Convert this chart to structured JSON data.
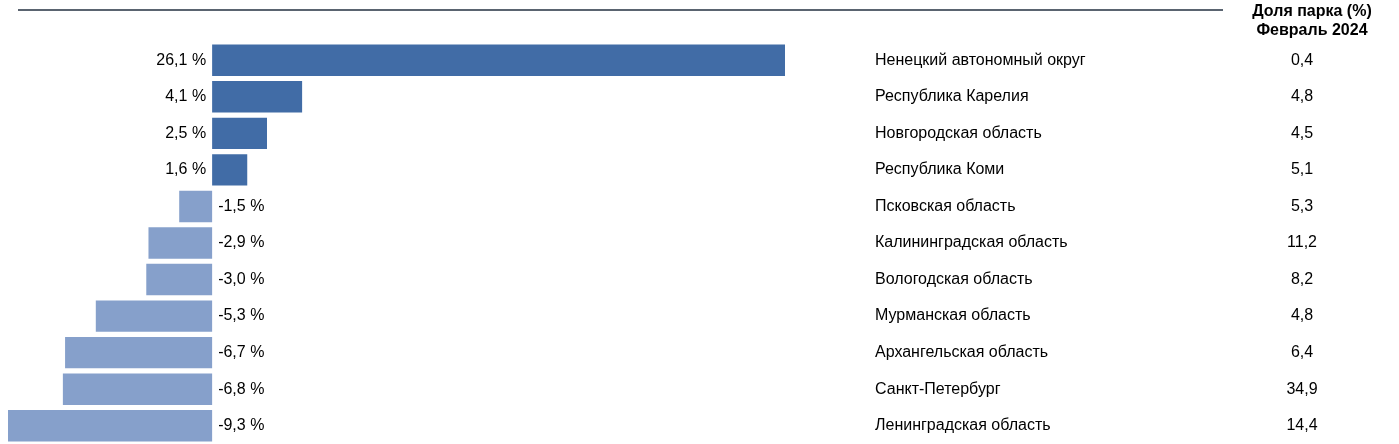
{
  "chart_data": {
    "type": "bar",
    "orientation": "horizontal",
    "categories": [
      "Ненецкий автономный округ",
      "Республика Карелия",
      "Новгородская область",
      "Республика Коми",
      "Псковская область",
      "Калининградская область",
      "Вологодская область",
      "Мурманская область",
      "Архангельская область",
      "Санкт-Петербург",
      "Ленинградская область"
    ],
    "values": [
      26.1,
      4.1,
      2.5,
      1.6,
      -1.5,
      -2.9,
      -3.0,
      -5.3,
      -6.7,
      -6.8,
      -9.3
    ],
    "value_labels": [
      "26,1 %",
      "4,1 %",
      "2,5 %",
      "1,6 %",
      "-1,5 %",
      "-2,9 %",
      "-3,0 %",
      "-5,3 %",
      "-6,7 %",
      "-6,8 %",
      "-9,3 %"
    ],
    "colors": [
      "#416ca6",
      "#416ca6",
      "#416ca6",
      "#416ca6",
      "#86a0cb",
      "#86a0cb",
      "#86a0cb",
      "#86a0cb",
      "#86a0cb",
      "#86a0cb",
      "#86a0cb"
    ],
    "xlim": [
      -9.3,
      26.1
    ],
    "legend": false,
    "annotations": [
      "Доля парка (%)\nФевраль 2024",
      "0,4",
      "4,8",
      "4,5",
      "5,1",
      "5,3",
      "11,2",
      "8,2",
      "4,8",
      "6,4",
      "34,9",
      "14,4"
    ]
  }
}
